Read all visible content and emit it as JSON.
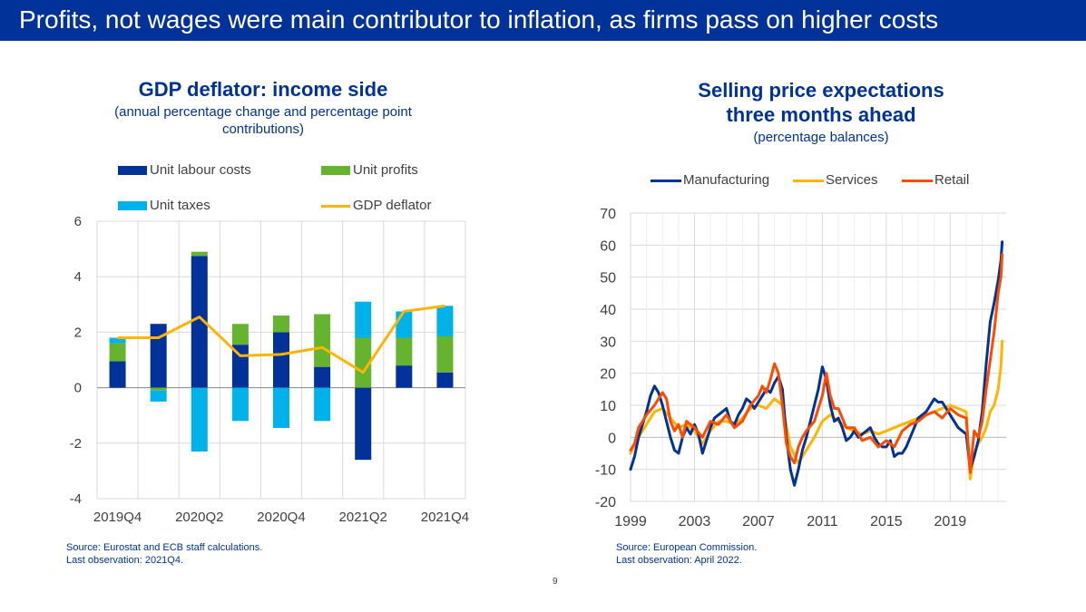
{
  "header": {
    "title": "Profits, not wages were main contributor to inflation, as firms pass on higher costs"
  },
  "left_chart": {
    "title": "GDP deflator: income side",
    "subtitle_line1": "(annual percentage change and percentage point",
    "subtitle_line2": "contributions)",
    "source_line1": "Source: Eurostat and ECB staff calculations.",
    "source_line2": "Last observation: 2021Q4."
  },
  "right_chart": {
    "title_line1": "Selling price expectations",
    "title_line2": "three months ahead",
    "subtitle": "(percentage balances)",
    "source_line1": "Source: European Commission.",
    "source_line2": "Last observation: April 2022."
  },
  "page_number": "9",
  "colors": {
    "brand": "#003299",
    "labour": "#003299",
    "profits": "#65b32e",
    "taxes": "#00b1ea",
    "deflator": "#ffb400",
    "manufacturing": "#003299",
    "services": "#ffb400",
    "retail": "#ff4b00"
  },
  "chart_data": [
    {
      "type": "bar",
      "stacked": true,
      "title": "GDP deflator: income side",
      "categories": [
        "2019Q4",
        "2020Q1",
        "2020Q2",
        "2020Q3",
        "2020Q4",
        "2021Q1",
        "2021Q2",
        "2021Q3",
        "2021Q4"
      ],
      "tick_labels": [
        "2019Q4",
        "2020Q2",
        "2020Q4",
        "2021Q2",
        "2021Q4"
      ],
      "ylim": [
        -4,
        6
      ],
      "yticks": [
        -4,
        -2,
        0,
        2,
        4,
        6
      ],
      "grid": true,
      "series": [
        {
          "name": "Unit labour costs",
          "kind": "bar",
          "values": [
            0.95,
            2.3,
            4.75,
            1.55,
            2.0,
            0.75,
            -2.6,
            0.8,
            0.55
          ]
        },
        {
          "name": "Unit profits",
          "kind": "bar",
          "values": [
            0.65,
            -0.1,
            0.15,
            0.75,
            0.6,
            1.9,
            1.8,
            1.0,
            1.3
          ]
        },
        {
          "name": "Unit taxes",
          "kind": "bar",
          "values": [
            0.2,
            -0.4,
            -2.3,
            -1.2,
            -1.45,
            -1.2,
            1.3,
            0.95,
            1.1
          ]
        },
        {
          "name": "GDP deflator",
          "kind": "line",
          "values": [
            1.8,
            1.8,
            2.55,
            1.15,
            1.2,
            1.45,
            0.55,
            2.75,
            2.95
          ]
        }
      ],
      "legend": "top"
    },
    {
      "type": "line",
      "title": "Selling price expectations three months ahead",
      "subtitle": "(percentage balances)",
      "xlim": [
        1999.0,
        2022.5
      ],
      "xticks": [
        1999,
        2003,
        2007,
        2011,
        2015,
        2019
      ],
      "ylim": [
        -20,
        70
      ],
      "yticks": [
        -20,
        -10,
        0,
        10,
        20,
        30,
        40,
        50,
        60,
        70
      ],
      "grid": true,
      "legend": "top",
      "series": [
        {
          "name": "Manufacturing",
          "points": [
            [
              1999.0,
              -10
            ],
            [
              1999.25,
              -6
            ],
            [
              1999.5,
              0
            ],
            [
              1999.75,
              4
            ],
            [
              2000.0,
              8
            ],
            [
              2000.25,
              13
            ],
            [
              2000.5,
              16
            ],
            [
              2000.75,
              14
            ],
            [
              2001.0,
              10
            ],
            [
              2001.25,
              5
            ],
            [
              2001.5,
              0
            ],
            [
              2001.75,
              -4
            ],
            [
              2002.0,
              -5
            ],
            [
              2002.25,
              0
            ],
            [
              2002.5,
              3
            ],
            [
              2002.75,
              1
            ],
            [
              2003.0,
              4
            ],
            [
              2003.25,
              1
            ],
            [
              2003.5,
              -5
            ],
            [
              2003.75,
              -1
            ],
            [
              2004.0,
              3
            ],
            [
              2004.25,
              6
            ],
            [
              2004.5,
              7
            ],
            [
              2004.75,
              8
            ],
            [
              2005.0,
              9
            ],
            [
              2005.25,
              5
            ],
            [
              2005.5,
              4
            ],
            [
              2005.75,
              7
            ],
            [
              2006.0,
              9
            ],
            [
              2006.25,
              12
            ],
            [
              2006.5,
              11
            ],
            [
              2006.75,
              9
            ],
            [
              2007.0,
              11
            ],
            [
              2007.25,
              13
            ],
            [
              2007.5,
              15
            ],
            [
              2007.75,
              14
            ],
            [
              2008.0,
              17
            ],
            [
              2008.25,
              19
            ],
            [
              2008.5,
              15
            ],
            [
              2008.75,
              0
            ],
            [
              2009.0,
              -10
            ],
            [
              2009.25,
              -15
            ],
            [
              2009.5,
              -10
            ],
            [
              2009.75,
              -4
            ],
            [
              2010.0,
              0
            ],
            [
              2010.25,
              5
            ],
            [
              2010.5,
              10
            ],
            [
              2010.75,
              15
            ],
            [
              2011.0,
              22
            ],
            [
              2011.25,
              18
            ],
            [
              2011.5,
              10
            ],
            [
              2011.75,
              5
            ],
            [
              2012.0,
              6
            ],
            [
              2012.25,
              3
            ],
            [
              2012.5,
              -1
            ],
            [
              2012.75,
              0
            ],
            [
              2013.0,
              2
            ],
            [
              2013.25,
              0
            ],
            [
              2013.5,
              1
            ],
            [
              2013.75,
              2
            ],
            [
              2014.0,
              3
            ],
            [
              2014.25,
              0
            ],
            [
              2014.5,
              -2
            ],
            [
              2014.75,
              -3
            ],
            [
              2015.0,
              -3
            ],
            [
              2015.25,
              -1
            ],
            [
              2015.5,
              -6
            ],
            [
              2015.75,
              -5
            ],
            [
              2016.0,
              -5
            ],
            [
              2016.25,
              -3
            ],
            [
              2016.5,
              0
            ],
            [
              2016.75,
              3
            ],
            [
              2017.0,
              6
            ],
            [
              2017.25,
              7
            ],
            [
              2017.5,
              8
            ],
            [
              2017.75,
              10
            ],
            [
              2018.0,
              12
            ],
            [
              2018.25,
              11
            ],
            [
              2018.5,
              11
            ],
            [
              2018.75,
              9
            ],
            [
              2019.0,
              7
            ],
            [
              2019.25,
              5
            ],
            [
              2019.5,
              3
            ],
            [
              2019.75,
              2
            ],
            [
              2020.0,
              1
            ],
            [
              2020.25,
              -10
            ],
            [
              2020.5,
              -6
            ],
            [
              2020.75,
              -1
            ],
            [
              2021.0,
              8
            ],
            [
              2021.25,
              23
            ],
            [
              2021.5,
              36
            ],
            [
              2021.75,
              42
            ],
            [
              2022.0,
              49
            ],
            [
              2022.17,
              55
            ],
            [
              2022.25,
              61
            ]
          ]
        },
        {
          "name": "Services",
          "points": [
            [
              1999.0,
              -5
            ],
            [
              1999.5,
              0
            ],
            [
              2000.0,
              4
            ],
            [
              2000.5,
              8
            ],
            [
              2001.0,
              9
            ],
            [
              2001.5,
              6
            ],
            [
              2002.0,
              3
            ],
            [
              2002.5,
              4
            ],
            [
              2003.0,
              2
            ],
            [
              2003.5,
              -2
            ],
            [
              2004.0,
              2
            ],
            [
              2004.5,
              5
            ],
            [
              2005.0,
              5
            ],
            [
              2005.5,
              4
            ],
            [
              2006.0,
              6
            ],
            [
              2006.5,
              9
            ],
            [
              2007.0,
              10
            ],
            [
              2007.5,
              9
            ],
            [
              2008.0,
              12
            ],
            [
              2008.5,
              10
            ],
            [
              2009.0,
              -3
            ],
            [
              2009.5,
              -8
            ],
            [
              2010.0,
              -4
            ],
            [
              2010.5,
              0
            ],
            [
              2011.0,
              5
            ],
            [
              2011.5,
              7
            ],
            [
              2012.0,
              5
            ],
            [
              2012.5,
              3
            ],
            [
              2013.0,
              2
            ],
            [
              2013.5,
              1
            ],
            [
              2014.0,
              2
            ],
            [
              2014.5,
              1
            ],
            [
              2015.0,
              2
            ],
            [
              2015.5,
              3
            ],
            [
              2016.0,
              4
            ],
            [
              2016.5,
              5
            ],
            [
              2017.0,
              6
            ],
            [
              2017.5,
              7
            ],
            [
              2018.0,
              8
            ],
            [
              2018.5,
              9
            ],
            [
              2019.0,
              10
            ],
            [
              2019.5,
              9
            ],
            [
              2020.0,
              8
            ],
            [
              2020.25,
              -13
            ],
            [
              2020.5,
              -5
            ],
            [
              2020.75,
              -2
            ],
            [
              2021.0,
              0
            ],
            [
              2021.25,
              3
            ],
            [
              2021.5,
              8
            ],
            [
              2021.75,
              10
            ],
            [
              2022.0,
              15
            ],
            [
              2022.17,
              22
            ],
            [
              2022.25,
              30
            ]
          ]
        },
        {
          "name": "Retail",
          "points": [
            [
              1999.0,
              -4
            ],
            [
              1999.25,
              -2
            ],
            [
              1999.5,
              3
            ],
            [
              1999.75,
              5
            ],
            [
              2000.0,
              7
            ],
            [
              2000.5,
              10
            ],
            [
              2001.0,
              14
            ],
            [
              2001.25,
              12
            ],
            [
              2001.5,
              5
            ],
            [
              2001.75,
              2
            ],
            [
              2002.0,
              4
            ],
            [
              2002.25,
              0
            ],
            [
              2002.5,
              5
            ],
            [
              2003.0,
              3
            ],
            [
              2003.5,
              0
            ],
            [
              2004.0,
              5
            ],
            [
              2004.5,
              4
            ],
            [
              2005.0,
              7
            ],
            [
              2005.5,
              3
            ],
            [
              2006.0,
              5
            ],
            [
              2006.5,
              10
            ],
            [
              2007.0,
              13
            ],
            [
              2007.25,
              16
            ],
            [
              2007.5,
              14
            ],
            [
              2007.75,
              18
            ],
            [
              2008.0,
              23
            ],
            [
              2008.25,
              20
            ],
            [
              2008.5,
              10
            ],
            [
              2008.75,
              -2
            ],
            [
              2009.0,
              -6
            ],
            [
              2009.25,
              -8
            ],
            [
              2009.5,
              -3
            ],
            [
              2009.75,
              0
            ],
            [
              2010.0,
              2
            ],
            [
              2010.5,
              5
            ],
            [
              2011.0,
              13
            ],
            [
              2011.25,
              20
            ],
            [
              2011.5,
              13
            ],
            [
              2011.75,
              9
            ],
            [
              2012.0,
              9
            ],
            [
              2012.5,
              3
            ],
            [
              2013.0,
              3
            ],
            [
              2013.5,
              -1
            ],
            [
              2014.0,
              0
            ],
            [
              2014.5,
              -3
            ],
            [
              2015.0,
              -1
            ],
            [
              2015.5,
              -3
            ],
            [
              2016.0,
              2
            ],
            [
              2016.5,
              4
            ],
            [
              2017.0,
              5
            ],
            [
              2017.5,
              7
            ],
            [
              2018.0,
              8
            ],
            [
              2018.5,
              6
            ],
            [
              2019.0,
              9
            ],
            [
              2019.5,
              7
            ],
            [
              2020.0,
              6
            ],
            [
              2020.25,
              -11
            ],
            [
              2020.5,
              2
            ],
            [
              2020.75,
              0
            ],
            [
              2021.0,
              5
            ],
            [
              2021.25,
              15
            ],
            [
              2021.5,
              24
            ],
            [
              2021.75,
              33
            ],
            [
              2022.0,
              45
            ],
            [
              2022.17,
              50
            ],
            [
              2022.25,
              57
            ]
          ]
        }
      ]
    }
  ]
}
